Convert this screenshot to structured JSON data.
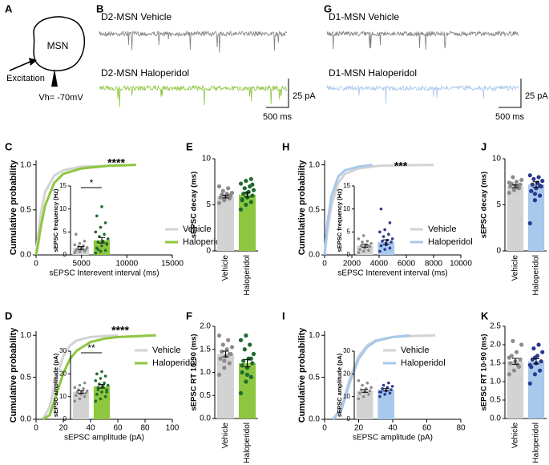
{
  "diagram": {
    "panel_label": "A",
    "cell": "MSN",
    "input": "Excitation",
    "holding": "Vh= -70mV"
  },
  "traces": [
    {
      "panel_label": "B",
      "top_label": "D2-MSN Vehicle",
      "bottom_label": "D2-MSN Haloperidol",
      "top_color": "#7f7f7f",
      "bottom_color": "#8dc63f",
      "amp_scale": "25 pA",
      "time_scale": "500 ms"
    },
    {
      "panel_label": "G",
      "top_label": "D1-MSN Vehicle",
      "bottom_label": "D1-MSN Haloperidol",
      "top_color": "#7f7f7f",
      "bottom_color": "#a8c8ec",
      "amp_scale": "25 pA",
      "time_scale": "500 ms"
    }
  ],
  "chart_data": [
    {
      "type": "line",
      "panel_label": "C",
      "ylabel": "Cumulative probability",
      "xlabel": "sEPSC Interevent interval (ms)",
      "annotation": "****",
      "xlim": [
        0,
        15000
      ],
      "xticks": [
        0,
        5000,
        10000,
        15000
      ],
      "ylim": [
        0,
        1.05
      ],
      "yticks": [
        {
          "value": 0,
          "label": "0.0"
        },
        0.5,
        {
          "value": 1,
          "label": "1.0"
        }
      ],
      "series": [
        {
          "name": "Vehicle",
          "color": "#d3d3d3",
          "x": [
            0,
            200,
            500,
            1000,
            2000,
            3000,
            5000,
            8000,
            11000
          ],
          "values": [
            0,
            0.2,
            0.45,
            0.7,
            0.88,
            0.94,
            0.98,
            0.99,
            1.0
          ]
        },
        {
          "name": "Haloperidol",
          "color": "#8dc63f",
          "x": [
            0,
            200,
            500,
            1000,
            2000,
            3000,
            5000,
            8000,
            11000
          ],
          "values": [
            0,
            0.1,
            0.3,
            0.55,
            0.8,
            0.9,
            0.96,
            0.99,
            1.0
          ]
        }
      ],
      "inset": {
        "ylabel": "sEPSC frequency (Hz)",
        "annotation": "*",
        "ylim": [
          0,
          15
        ],
        "yticks": [
          0,
          5,
          10,
          15
        ],
        "values": [
          1.5,
          3.2
        ],
        "errors": [
          0.3,
          0.6
        ],
        "colors": [
          "#d3d3d3",
          "#8dc63f"
        ],
        "point_colors": [
          "#8c8c8c",
          "#1e6b2e"
        ],
        "points": [
          [
            0.5,
            0.7,
            0.8,
            1.0,
            1.1,
            1.2,
            1.3,
            1.5,
            1.6,
            1.8,
            2.0,
            2.2,
            2.5,
            3.0,
            4.5
          ],
          [
            0.4,
            0.8,
            1.0,
            1.5,
            2.0,
            2.3,
            2.8,
            3.0,
            3.5,
            4.0,
            4.5,
            5.0,
            6.0,
            7.0,
            8.5,
            10.5,
            2.5,
            1.2
          ]
        ]
      }
    },
    {
      "type": "bar",
      "panel_label": "E",
      "ylabel": "sEPSC decay (ms)",
      "categories": [
        "Vehicle",
        "Haloperidol"
      ],
      "ylim": [
        0,
        10
      ],
      "yticks": [
        0,
        5,
        10
      ],
      "values": [
        5.9,
        6.1
      ],
      "errors": [
        0.15,
        0.25
      ],
      "colors": [
        "#d3d3d3",
        "#8dc63f"
      ],
      "point_colors": [
        "#8c8c8c",
        "#1e6b2e"
      ],
      "points": [
        [
          5.2,
          5.5,
          5.7,
          5.8,
          5.9,
          6.0,
          6.1,
          6.2,
          6.3,
          6.5,
          6.8,
          7.0,
          5.6,
          6.0
        ],
        [
          4.5,
          5.0,
          5.3,
          5.6,
          5.8,
          6.0,
          6.2,
          6.4,
          6.6,
          6.8,
          7.0,
          7.3,
          7.6,
          7.8,
          5.5,
          6.3,
          7.2
        ]
      ]
    },
    {
      "type": "line",
      "panel_label": "D",
      "ylabel": "Cumulative probability",
      "xlabel": "sEPSC amplitude (pA)",
      "annotation": "****",
      "xlim": [
        0,
        100
      ],
      "xticks": [
        0,
        20,
        40,
        60,
        80,
        100
      ],
      "ylim": [
        0,
        1.05
      ],
      "yticks": [
        {
          "value": 0,
          "label": "0.0"
        },
        0.5,
        {
          "value": 1,
          "label": "1.0"
        }
      ],
      "series": [
        {
          "name": "Vehicle",
          "color": "#d3d3d3",
          "x": [
            5,
            10,
            15,
            20,
            25,
            30,
            40,
            50,
            60
          ],
          "values": [
            0,
            0.15,
            0.5,
            0.75,
            0.88,
            0.94,
            0.98,
            0.99,
            1.0
          ]
        },
        {
          "name": "Haloperidol",
          "color": "#8dc63f",
          "x": [
            5,
            10,
            15,
            20,
            25,
            30,
            40,
            50,
            60,
            75,
            88
          ],
          "values": [
            0,
            0.05,
            0.3,
            0.55,
            0.72,
            0.82,
            0.92,
            0.96,
            0.98,
            0.99,
            1.0
          ]
        }
      ],
      "inset": {
        "ylabel": "sEPSC amplitude (pA)",
        "annotation": "**",
        "ylim": [
          0,
          30
        ],
        "yticks": [
          0,
          10,
          20,
          30
        ],
        "values": [
          12,
          14.5
        ],
        "errors": [
          0.6,
          0.8
        ],
        "colors": [
          "#d3d3d3",
          "#8dc63f"
        ],
        "point_colors": [
          "#8c8c8c",
          "#1e6b2e"
        ],
        "points": [
          [
            8,
            9,
            10,
            10.5,
            11,
            11.5,
            12,
            12,
            12.5,
            13,
            13.5,
            14,
            15,
            16
          ],
          [
            8,
            9,
            10,
            11,
            12,
            13,
            14,
            14.5,
            15,
            15.5,
            16,
            17,
            18,
            19,
            20,
            21,
            12,
            13
          ]
        ]
      }
    },
    {
      "type": "bar",
      "panel_label": "F",
      "ylabel": "sEPSC RT 10-90 (ms)",
      "categories": [
        "Vehicle",
        "Haloperidol"
      ],
      "ylim": [
        0,
        2
      ],
      "yticks": [
        {
          "value": 0,
          "label": "0.0"
        },
        0.5,
        {
          "value": 1,
          "label": "1.0"
        },
        1.5,
        {
          "value": 2,
          "label": "2.0"
        }
      ],
      "values": [
        1.4,
        1.2
      ],
      "errors": [
        0.06,
        0.08
      ],
      "colors": [
        "#d3d3d3",
        "#8dc63f"
      ],
      "point_colors": [
        "#8c8c8c",
        "#1e6b2e"
      ],
      "points": [
        [
          0.95,
          1.1,
          1.2,
          1.3,
          1.35,
          1.4,
          1.45,
          1.5,
          1.55,
          1.6,
          1.7,
          1.8,
          1.25,
          1.4
        ],
        [
          0.55,
          0.8,
          0.9,
          1.0,
          1.1,
          1.2,
          1.25,
          1.3,
          1.4,
          1.5,
          1.6,
          1.7,
          1.8,
          1.3,
          1.15,
          0.95
        ]
      ]
    },
    {
      "type": "line",
      "panel_label": "H",
      "ylabel": "Cumulative probability",
      "xlabel": "sEPSC Interevent interval (ms)",
      "annotation": "***",
      "xlim": [
        0,
        10000
      ],
      "xticks": [
        0,
        2000,
        4000,
        6000,
        8000,
        10000
      ],
      "ylim": [
        0,
        1.05
      ],
      "yticks": [
        {
          "value": 0,
          "label": "0.0"
        },
        0.5,
        {
          "value": 1,
          "label": "1.0"
        }
      ],
      "series": [
        {
          "name": "Vehicle",
          "color": "#d3d3d3",
          "x": [
            0,
            200,
            500,
            1000,
            1500,
            2500,
            4000,
            8000
          ],
          "values": [
            0,
            0.25,
            0.55,
            0.8,
            0.9,
            0.96,
            0.99,
            1.0
          ]
        },
        {
          "name": "Haloperidol",
          "color": "#a8c8ec",
          "x": [
            0,
            200,
            500,
            1000,
            1500,
            2500,
            3500
          ],
          "values": [
            0,
            0.35,
            0.65,
            0.87,
            0.94,
            0.98,
            1.0
          ]
        }
      ],
      "inset": {
        "ylabel": "sEPSC frequency (Hz)",
        "ylim": [
          0,
          15
        ],
        "yticks": [
          0,
          5,
          10,
          15
        ],
        "values": [
          2.0,
          2.8
        ],
        "errors": [
          0.3,
          0.5
        ],
        "colors": [
          "#d3d3d3",
          "#a8c8ec"
        ],
        "point_colors": [
          "#8c8c8c",
          "#2b3990"
        ],
        "points": [
          [
            0.5,
            0.8,
            1.0,
            1.2,
            1.5,
            1.8,
            2.0,
            2.2,
            2.5,
            2.8,
            3.0,
            3.5,
            4.2,
            2.0
          ],
          [
            0.8,
            1.2,
            1.5,
            2.0,
            2.5,
            2.8,
            3.0,
            3.2,
            3.5,
            4.0,
            4.5,
            5.0,
            5.5,
            7.0,
            10.0,
            2.2
          ]
        ]
      }
    },
    {
      "type": "bar",
      "panel_label": "J",
      "ylabel": "sEPSC decay (ms)",
      "categories": [
        "Vehicle",
        "Haloperidol"
      ],
      "ylim": [
        0,
        10
      ],
      "yticks": [
        0,
        5,
        10
      ],
      "values": [
        7.0,
        7.2
      ],
      "errors": [
        0.15,
        0.3
      ],
      "colors": [
        "#d3d3d3",
        "#a8c8ec"
      ],
      "point_colors": [
        "#8c8c8c",
        "#2b3990"
      ],
      "points": [
        [
          6.3,
          6.6,
          6.8,
          7.0,
          7.1,
          7.2,
          7.3,
          7.5,
          7.7,
          8.0,
          6.9,
          7.4
        ],
        [
          3.0,
          5.5,
          6.0,
          6.5,
          6.8,
          7.0,
          7.2,
          7.4,
          7.6,
          7.8,
          8.0,
          8.2,
          6.2,
          7.1
        ]
      ]
    },
    {
      "type": "line",
      "panel_label": "I",
      "ylabel": "Cumulative probability",
      "xlabel": "sEPSC amplitude (pA)",
      "xlim": [
        0,
        80
      ],
      "xticks": [
        0,
        20,
        40,
        60,
        80
      ],
      "ylim": [
        0,
        1.05
      ],
      "yticks": [
        {
          "value": 0,
          "label": "0.0"
        },
        0.5,
        {
          "value": 1,
          "label": "1.0"
        }
      ],
      "series": [
        {
          "name": "Vehicle",
          "color": "#d3d3d3",
          "x": [
            5,
            10,
            15,
            20,
            25,
            30,
            40,
            50,
            65
          ],
          "values": [
            0,
            0.15,
            0.5,
            0.75,
            0.88,
            0.94,
            0.98,
            0.99,
            1.0
          ]
        },
        {
          "name": "Haloperidol",
          "color": "#a8c8ec",
          "x": [
            5,
            10,
            15,
            20,
            25,
            30,
            40,
            50
          ],
          "values": [
            0,
            0.12,
            0.45,
            0.72,
            0.86,
            0.93,
            0.98,
            1.0
          ]
        }
      ],
      "inset": {
        "ylabel": "sEPSC amplitude (pA)",
        "ylim": [
          0,
          30
        ],
        "yticks": [
          0,
          10,
          20,
          30
        ],
        "values": [
          12.5,
          13
        ],
        "errors": [
          0.6,
          0.5
        ],
        "colors": [
          "#d3d3d3",
          "#a8c8ec"
        ],
        "point_colors": [
          "#8c8c8c",
          "#2b3990"
        ],
        "points": [
          [
            9,
            10,
            11,
            11.5,
            12,
            12.5,
            13,
            13.5,
            14,
            15,
            16,
            17
          ],
          [
            10,
            11,
            11.5,
            12,
            12.5,
            13,
            13.5,
            14,
            14.5,
            15,
            16,
            12
          ]
        ]
      }
    },
    {
      "type": "bar",
      "panel_label": "K",
      "ylabel": "sEPSC RT 10-90 (ms)",
      "categories": [
        "Vehicle",
        "Haloperidol"
      ],
      "ylim": [
        0,
        2.5
      ],
      "yticks": [
        {
          "value": 0,
          "label": "0.0"
        },
        0.5,
        {
          "value": 1,
          "label": "1.0"
        },
        1.5,
        {
          "value": 2,
          "label": "2.0"
        },
        2.5
      ],
      "values": [
        1.55,
        1.55
      ],
      "errors": [
        0.08,
        0.07
      ],
      "colors": [
        "#d3d3d3",
        "#a8c8ec"
      ],
      "point_colors": [
        "#8c8c8c",
        "#2b3990"
      ],
      "points": [
        [
          1.2,
          1.3,
          1.4,
          1.5,
          1.55,
          1.6,
          1.7,
          1.8,
          2.0,
          2.1,
          1.45,
          1.65
        ],
        [
          0.95,
          1.2,
          1.3,
          1.4,
          1.5,
          1.55,
          1.6,
          1.7,
          1.8,
          1.9,
          2.0,
          1.45,
          1.65
        ]
      ]
    }
  ]
}
